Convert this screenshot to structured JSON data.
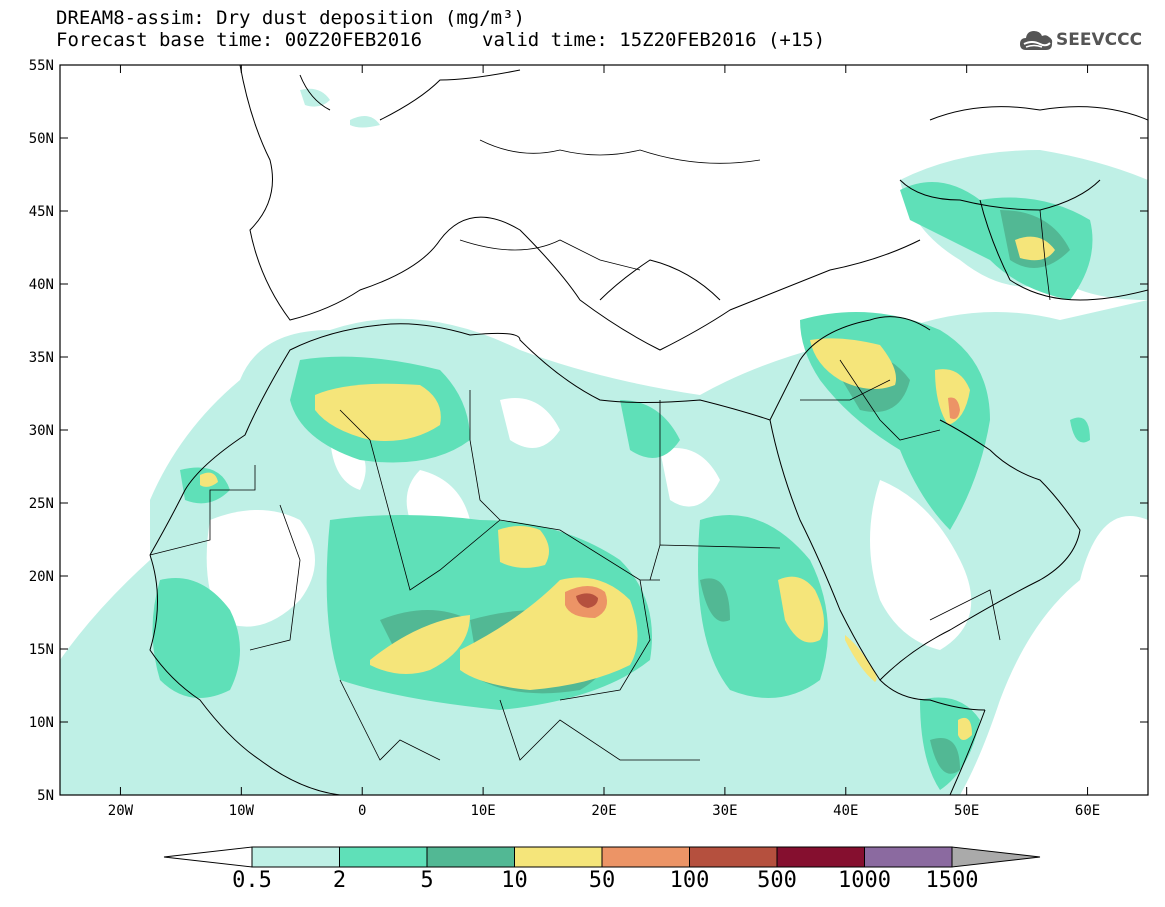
{
  "title": {
    "line1": "DREAM8-assim: Dry dust deposition (mg/m³)",
    "line2_left": "Forecast base time: 00Z20FEB2016",
    "line2_right": "valid time: 15Z20FEB2016 (+15)"
  },
  "logo": {
    "icon": "cloud-icon",
    "text": "SEEVCCC"
  },
  "axes": {
    "lat_labels": [
      "55N",
      "50N",
      "45N",
      "40N",
      "35N",
      "30N",
      "25N",
      "20N",
      "15N",
      "10N",
      "5N"
    ],
    "lon_labels": [
      "20W",
      "10W",
      "0",
      "10E",
      "20E",
      "30E",
      "40E",
      "50E",
      "60E"
    ],
    "lat_range": [
      5,
      55
    ],
    "lon_range": [
      -25,
      65
    ]
  },
  "colorbar": {
    "levels": [
      "0.5",
      "2",
      "5",
      "10",
      "50",
      "100",
      "500",
      "1000",
      "1500"
    ],
    "colors": [
      "#bff0e6",
      "#5fe0b8",
      "#52b894",
      "#f5e57a",
      "#ec9466",
      "#b5503e",
      "#850f2f",
      "#8b6aa0"
    ],
    "under_color": "#ffffff",
    "over_color": "#aaaaaa"
  }
}
